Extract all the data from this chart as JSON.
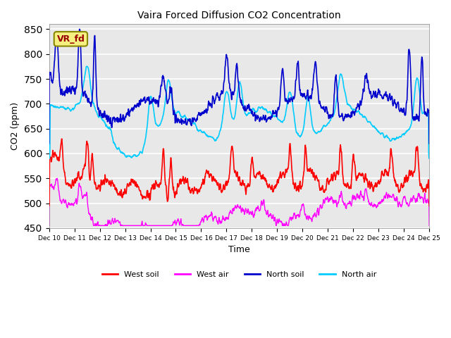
{
  "title": "Vaira Forced Diffusion CO2 Concentration",
  "xlabel": "Time",
  "ylabel": "CO2 (ppm)",
  "ylim": [
    450,
    860
  ],
  "yticks": [
    450,
    500,
    550,
    600,
    650,
    700,
    750,
    800,
    850
  ],
  "legend_label": "VR_fd",
  "series": {
    "west_soil": {
      "label": "West soil",
      "color": "#ff0000"
    },
    "west_air": {
      "label": "West air",
      "color": "#ff00ff"
    },
    "north_soil": {
      "label": "North soil",
      "color": "#0000cc"
    },
    "north_air": {
      "label": "North air",
      "color": "#00ccff"
    }
  },
  "xtick_labels": [
    "Dec 10",
    "Dec 11",
    "Dec 12",
    "Dec 13",
    "Dec 14",
    "Dec 15",
    "Dec 16",
    "Dec 17",
    "Dec 18",
    "Dec 19",
    "Dec 20",
    "Dec 21",
    "Dec 22",
    "Dec 23",
    "Dec 24",
    "Dec 25"
  ],
  "background_color": "#dedede",
  "grid_color": "white",
  "plot_bg": "#e8e8e8"
}
